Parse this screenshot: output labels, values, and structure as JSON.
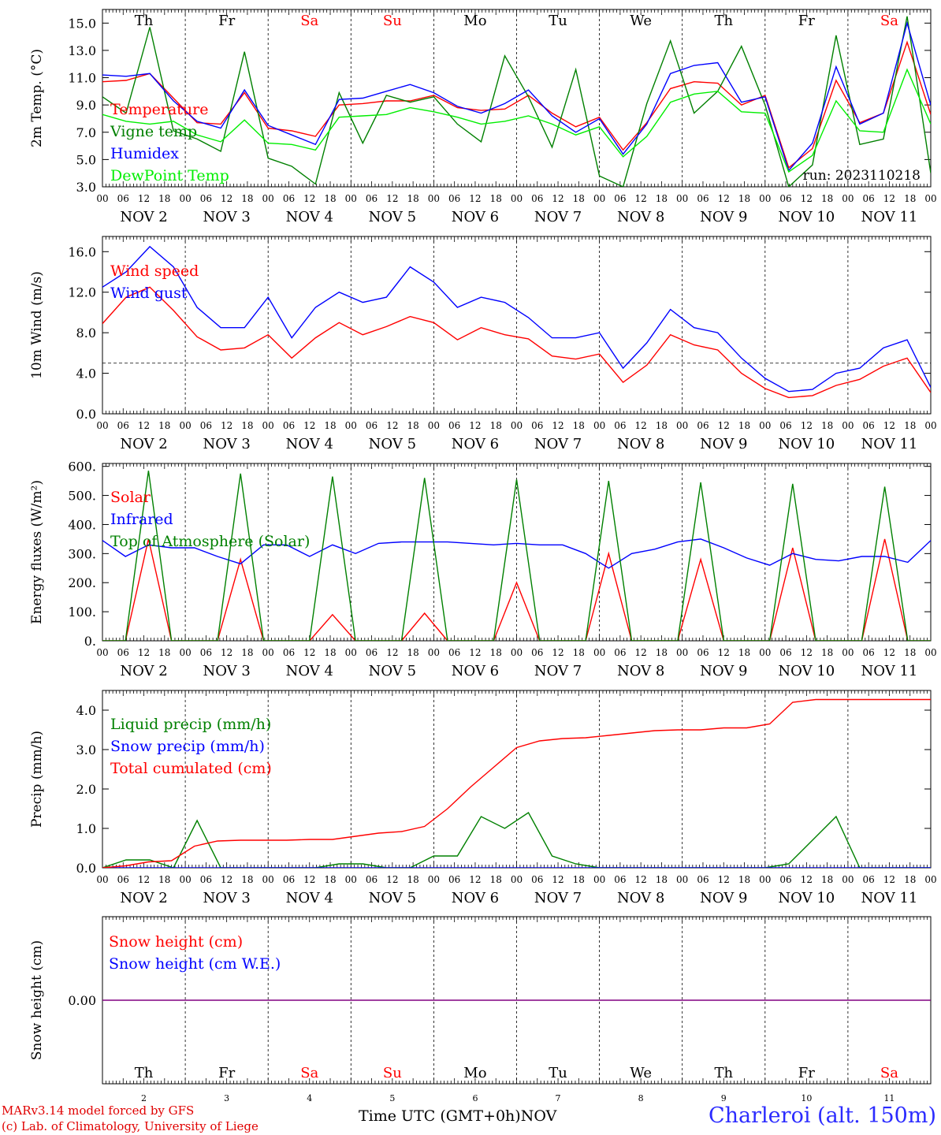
{
  "days": [
    {
      "abbr": "Th",
      "num": "2",
      "weekend": false
    },
    {
      "abbr": "Fr",
      "num": "3",
      "weekend": false
    },
    {
      "abbr": "Sa",
      "num": "4",
      "weekend": true
    },
    {
      "abbr": "Su",
      "num": "5",
      "weekend": true
    },
    {
      "abbr": "Mo",
      "num": "6",
      "weekend": false
    },
    {
      "abbr": "Tu",
      "num": "7",
      "weekend": false
    },
    {
      "abbr": "We",
      "num": "8",
      "weekend": false
    },
    {
      "abbr": "Th",
      "num": "9",
      "weekend": false
    },
    {
      "abbr": "Fr",
      "num": "10",
      "weekend": false
    },
    {
      "abbr": "Sa",
      "num": "11",
      "weekend": true
    }
  ],
  "date_labels": [
    "NOV  2",
    "NOV  3",
    "NOV  4",
    "NOV  5",
    "NOV  6",
    "NOV  7",
    "NOV  8",
    "NOV  9",
    "NOV 10",
    "NOV 11"
  ],
  "hour_ticks": [
    "00",
    "06",
    "12",
    "18"
  ],
  "end_hour": "00",
  "footer": {
    "credit_line1": "MARv3.14 model forced by GFS",
    "credit_line2": "(c) Lab. of Climatology, University of Liege",
    "xaxis_title": "Time UTC (GMT+0h)",
    "month": "NOV",
    "station": "Charleroi (alt. 150m)"
  },
  "colors": {
    "red": "#ff0000",
    "green": "#008000",
    "blue": "#0000ff",
    "lightgreen": "#00ee00",
    "weekend": "#ff0000",
    "purple": "#800080"
  },
  "chart_data": [
    {
      "type": "line",
      "ylabel": "2m Temp. (°C)",
      "ylim": [
        3.0,
        16.0
      ],
      "yticks": [
        "3.0",
        "5.0",
        "7.0",
        "9.0",
        "11.0",
        "13.0",
        "15.0"
      ],
      "annotation": "run: 2023110218",
      "x_start": "2023-11-02T00:00Z",
      "x_step_hours": 6,
      "series": [
        {
          "name": "Temperature",
          "color": "red",
          "values": [
            10.7,
            10.8,
            11.3,
            9.5,
            7.7,
            7.6,
            9.9,
            7.3,
            7.1,
            6.7,
            9.0,
            9.1,
            9.3,
            9.3,
            9.7,
            8.8,
            8.6,
            8.7,
            9.7,
            8.4,
            7.4,
            8.1,
            5.7,
            7.7,
            10.2,
            10.7,
            10.6,
            9.0,
            9.7,
            4.4,
            5.8,
            10.8,
            7.7,
            8.4,
            13.6,
            8.3
          ]
        },
        {
          "name": "Vigne temp",
          "color": "green",
          "values": [
            9.6,
            8.4,
            14.7,
            7.1,
            6.5,
            5.6,
            12.9,
            5.1,
            4.5,
            3.2,
            9.9,
            6.2,
            9.7,
            9.2,
            9.6,
            7.6,
            6.3,
            12.6,
            9.6,
            5.9,
            11.6,
            3.8,
            3.0,
            9.1,
            13.7,
            8.4,
            10.0,
            13.3,
            9.0,
            3.0,
            4.6,
            14.1,
            6.1,
            6.5,
            15.5,
            4.0
          ]
        },
        {
          "name": "Humidex",
          "color": "blue",
          "values": [
            11.2,
            11.1,
            11.3,
            9.3,
            7.8,
            7.3,
            10.1,
            7.5,
            6.8,
            6.1,
            9.4,
            9.5,
            10.0,
            10.5,
            9.9,
            8.9,
            8.4,
            9.1,
            10.1,
            8.2,
            7.0,
            8.0,
            5.4,
            7.6,
            11.3,
            11.9,
            12.1,
            9.2,
            9.6,
            4.2,
            6.2,
            11.8,
            7.6,
            8.4,
            15.0,
            9.0
          ]
        },
        {
          "name": "DewPoint Temp",
          "color": "lightgreen",
          "values": [
            8.3,
            7.8,
            7.6,
            7.8,
            6.8,
            6.3,
            7.9,
            6.2,
            6.1,
            5.7,
            8.1,
            8.2,
            8.3,
            8.8,
            8.5,
            8.1,
            7.6,
            7.8,
            8.2,
            7.6,
            6.8,
            7.4,
            5.2,
            6.7,
            9.2,
            9.8,
            10.0,
            8.5,
            8.4,
            4.1,
            5.3,
            9.3,
            7.1,
            7.0,
            11.6,
            7.6
          ]
        }
      ]
    },
    {
      "type": "line",
      "ylabel": "10m Wind (m/s)",
      "ylim": [
        0.0,
        17.5
      ],
      "yticks": [
        "0.0",
        "4.0",
        "8.0",
        "12.0",
        "16.0"
      ],
      "ref_line": 5.0,
      "x_start": "2023-11-02T00:00Z",
      "x_step_hours": 6,
      "series": [
        {
          "name": "Wind speed",
          "color": "red",
          "values": [
            8.9,
            11.5,
            12.5,
            10.2,
            7.6,
            6.3,
            6.5,
            7.8,
            5.5,
            7.5,
            9.0,
            7.8,
            8.6,
            9.6,
            9.0,
            7.3,
            8.5,
            7.8,
            7.4,
            5.7,
            5.4,
            5.9,
            3.1,
            4.8,
            7.8,
            6.8,
            6.3,
            4.0,
            2.5,
            1.6,
            1.8,
            2.8,
            3.4,
            4.7,
            5.5,
            2.1
          ]
        },
        {
          "name": "Wind gust",
          "color": "blue",
          "values": [
            12.5,
            14.0,
            16.5,
            14.5,
            10.5,
            8.5,
            8.5,
            11.5,
            7.5,
            10.5,
            12.0,
            11.0,
            11.5,
            14.5,
            13.0,
            10.5,
            11.5,
            11.0,
            9.5,
            7.5,
            7.5,
            8.0,
            4.5,
            7.0,
            10.3,
            8.5,
            8.0,
            5.5,
            3.5,
            2.2,
            2.4,
            4.0,
            4.5,
            6.5,
            7.3,
            2.6
          ]
        }
      ]
    },
    {
      "type": "line",
      "ylabel": "Energy fluxes (W/m²)",
      "ylim": [
        0,
        610
      ],
      "yticks": [
        "0.",
        "100.",
        "200.",
        "300.",
        "400.",
        "500.",
        "600."
      ],
      "x_start": "2023-11-02T00:00Z",
      "x_step_hours": 6,
      "series": [
        {
          "name": "Solar",
          "color": "red",
          "values": [
            0,
            0,
            350,
            0,
            0,
            0,
            280,
            0,
            0,
            0,
            90,
            0,
            0,
            0,
            95,
            0,
            0,
            0,
            200,
            0,
            0,
            0,
            300,
            0,
            0,
            0,
            280,
            0,
            0,
            0,
            320,
            0,
            0,
            0,
            350,
            0,
            0
          ]
        },
        {
          "name": "Infrared",
          "color": "blue",
          "values": [
            345,
            290,
            330,
            320,
            320,
            290,
            265,
            330,
            330,
            290,
            330,
            300,
            335,
            340,
            340,
            340,
            335,
            330,
            335,
            330,
            330,
            300,
            250,
            300,
            315,
            340,
            350,
            320,
            285,
            260,
            300,
            280,
            275,
            290,
            290,
            270,
            345
          ]
        },
        {
          "name": "Top of Atmosphere (Solar)",
          "color": "green",
          "values": [
            0,
            0,
            585,
            0,
            0,
            0,
            575,
            0,
            0,
            0,
            565,
            0,
            0,
            0,
            560,
            0,
            0,
            0,
            555,
            0,
            0,
            0,
            550,
            0,
            0,
            0,
            545,
            0,
            0,
            0,
            540,
            0,
            0,
            0,
            530,
            0,
            0
          ]
        }
      ]
    },
    {
      "type": "line",
      "ylabel": "Precip (mm/h)",
      "ylim": [
        0.0,
        4.5
      ],
      "yticks": [
        "0.0",
        "1.0",
        "2.0",
        "3.0",
        "4.0"
      ],
      "x_start": "2023-11-02T00:00Z",
      "x_step_hours": 6,
      "series": [
        {
          "name": "Liquid precip (mm/h)",
          "color": "green",
          "values": [
            0.0,
            0.2,
            0.2,
            0.0,
            1.2,
            0.0,
            0.0,
            0.0,
            0.0,
            0.0,
            0.1,
            0.1,
            0.0,
            0.0,
            0.3,
            0.3,
            1.3,
            1.0,
            1.4,
            0.3,
            0.1,
            0.0,
            0.0,
            0.0,
            0.0,
            0.0,
            0.0,
            0.0,
            0.0,
            0.1,
            0.7,
            1.3,
            0.0,
            0.0,
            0.0,
            0.0
          ]
        },
        {
          "name": "Snow precip (mm/h)",
          "color": "blue",
          "values": [
            0,
            0,
            0,
            0,
            0,
            0,
            0,
            0,
            0,
            0,
            0,
            0,
            0,
            0,
            0,
            0,
            0,
            0,
            0,
            0,
            0,
            0,
            0,
            0,
            0,
            0,
            0,
            0,
            0,
            0,
            0,
            0,
            0,
            0,
            0,
            0
          ]
        },
        {
          "name": "Total cumulated (cm)",
          "color": "red",
          "values": [
            0.0,
            0.05,
            0.15,
            0.18,
            0.55,
            0.68,
            0.7,
            0.7,
            0.7,
            0.72,
            0.72,
            0.8,
            0.88,
            0.92,
            1.05,
            1.5,
            2.05,
            2.55,
            3.05,
            3.22,
            3.28,
            3.3,
            3.36,
            3.42,
            3.48,
            3.5,
            3.5,
            3.55,
            3.55,
            3.65,
            4.2,
            4.27,
            4.27,
            4.27,
            4.27,
            4.27,
            4.27
          ]
        }
      ]
    },
    {
      "type": "line",
      "ylabel": "Snow height (cm)",
      "ylim": [
        -1.0,
        1.0
      ],
      "yticks": [
        "0.00"
      ],
      "x_start": "2023-11-02T00:00Z",
      "x_step_hours": 6,
      "series": [
        {
          "name": "Snow height (cm)",
          "color": "red",
          "values": [
            0,
            0
          ]
        },
        {
          "name": "Snow height (cm W.E.)",
          "color": "blue",
          "values": [
            0,
            0
          ]
        }
      ]
    }
  ]
}
